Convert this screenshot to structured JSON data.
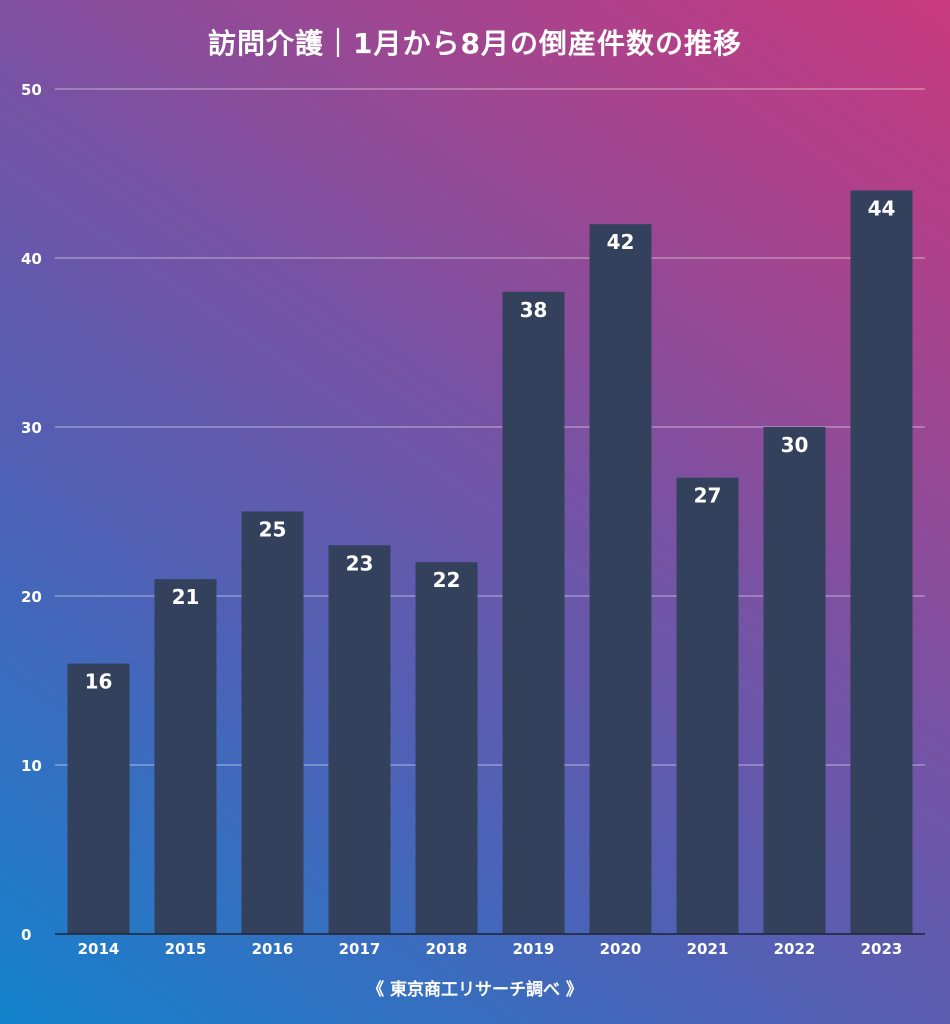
{
  "chart_data": {
    "type": "bar",
    "title": "訪問介護｜1月から8月の倒産件数の推移",
    "source": "《 東京商工リサーチ調べ 》",
    "categories": [
      "2014",
      "2015",
      "2016",
      "2017",
      "2018",
      "2019",
      "2020",
      "2021",
      "2022",
      "2023"
    ],
    "values": [
      16,
      21,
      25,
      23,
      22,
      38,
      42,
      27,
      30,
      44
    ],
    "ylim": [
      0,
      50
    ],
    "yticks": [
      0,
      10,
      20,
      30,
      40,
      50
    ],
    "grid": true,
    "bar_color": "#33415d",
    "xlabel": "",
    "ylabel": ""
  }
}
